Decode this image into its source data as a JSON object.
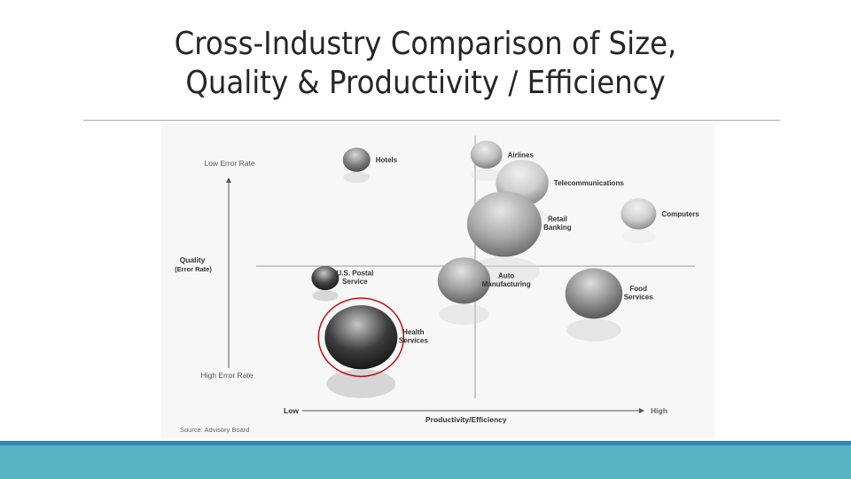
{
  "slide": {
    "title_line1": "Cross-Industry Comparison of Size,",
    "title_line2": "Quality & Productivity / Efficiency"
  },
  "colors": {
    "footer": "#58b4c0",
    "footer_top": "#2f86b8",
    "highlight": "#cc0000"
  },
  "chart_data": {
    "type": "scatter",
    "bubble": true,
    "y_axis": {
      "title": "Quality",
      "subtitle": "(Error Rate)",
      "top_label": "Low Error Rate",
      "bottom_label": "High Error Rate"
    },
    "x_axis": {
      "title": "Productivity/Efficiency",
      "low_label": "Low",
      "high_label": "High"
    },
    "source": "Source: Advisory Board",
    "xlim": [
      0,
      10
    ],
    "ylim": [
      0,
      10
    ],
    "points": [
      {
        "label": [
          "Hotels"
        ],
        "x": 2.5,
        "y": 9.1,
        "size": 0.6,
        "shade": "#6a6a6a",
        "highlight": false
      },
      {
        "label": [
          "Airlines"
        ],
        "x": 5.4,
        "y": 9.3,
        "size": 0.8,
        "shade": "#b4b4b4",
        "highlight": false
      },
      {
        "label": [
          "Telecommunications"
        ],
        "x": 6.2,
        "y": 8.2,
        "size": 2.2,
        "shade": "#c4c4c4",
        "highlight": false
      },
      {
        "label": [
          "Computers"
        ],
        "x": 8.8,
        "y": 7.0,
        "size": 1.0,
        "shade": "#c8c8c8",
        "highlight": false
      },
      {
        "label": [
          "Retail",
          "Banking"
        ],
        "x": 5.8,
        "y": 6.6,
        "size": 4.4,
        "shade": "#9a9a9a",
        "highlight": false
      },
      {
        "label": [
          "U.S. Postal",
          "Service"
        ],
        "x": 1.8,
        "y": 4.5,
        "size": 0.6,
        "shade": "#222222",
        "highlight": false
      },
      {
        "label": [
          "Auto",
          "Manufacturing"
        ],
        "x": 4.9,
        "y": 4.4,
        "size": 2.2,
        "shade": "#8a8a8a",
        "highlight": false
      },
      {
        "label": [
          "Food",
          "Services"
        ],
        "x": 7.8,
        "y": 3.9,
        "size": 2.6,
        "shade": "#7a7a7a",
        "highlight": false
      },
      {
        "label": [
          "Health",
          "Services"
        ],
        "x": 2.6,
        "y": 2.2,
        "size": 4.2,
        "shade": "#1a1a1a",
        "highlight": true
      }
    ]
  }
}
